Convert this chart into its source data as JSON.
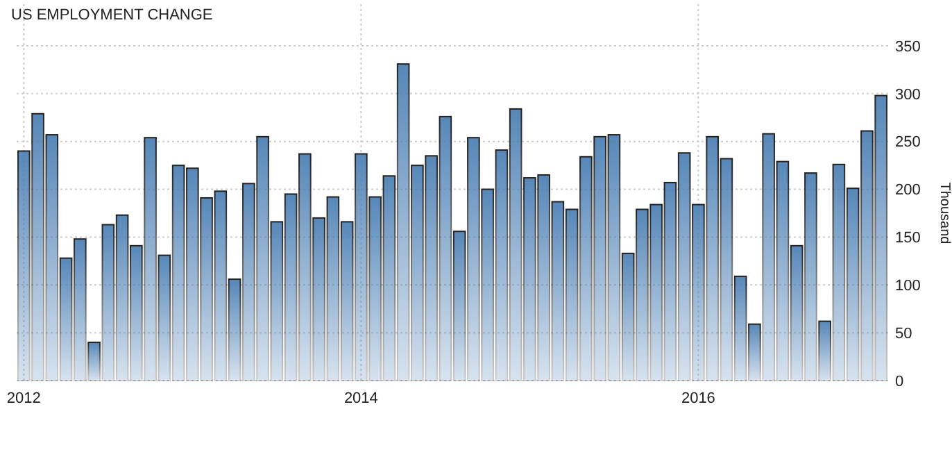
{
  "chart_data": {
    "type": "bar",
    "title": "US EMPLOYMENT CHANGE",
    "ylabel": "Thousand",
    "categories": [
      "2012",
      null,
      null,
      null,
      null,
      null,
      null,
      null,
      null,
      null,
      null,
      null,
      null,
      null,
      null,
      null,
      null,
      null,
      null,
      null,
      null,
      null,
      null,
      null,
      "2014",
      null,
      null,
      null,
      null,
      null,
      null,
      null,
      null,
      null,
      null,
      null,
      null,
      null,
      null,
      null,
      null,
      null,
      null,
      null,
      null,
      null,
      null,
      null,
      "2016",
      null,
      null,
      null,
      null,
      null,
      null,
      null,
      null,
      null,
      null,
      null,
      null,
      null
    ],
    "values": [
      240,
      279,
      257,
      128,
      148,
      40,
      163,
      173,
      141,
      254,
      131,
      225,
      222,
      191,
      198,
      106,
      206,
      255,
      166,
      195,
      237,
      170,
      192,
      166,
      237,
      192,
      214,
      331,
      225,
      235,
      276,
      156,
      254,
      200,
      241,
      284,
      212,
      215,
      187,
      179,
      234,
      255,
      257,
      133,
      179,
      184,
      207,
      238,
      184,
      255,
      232,
      109,
      59,
      258,
      229,
      141,
      217,
      62,
      226,
      201,
      261,
      298
    ],
    "color": "#4a7eb3",
    "ylim": [
      0,
      350
    ],
    "yticks": [
      0,
      50,
      100,
      150,
      200,
      250,
      300,
      350
    ],
    "grid": true
  }
}
